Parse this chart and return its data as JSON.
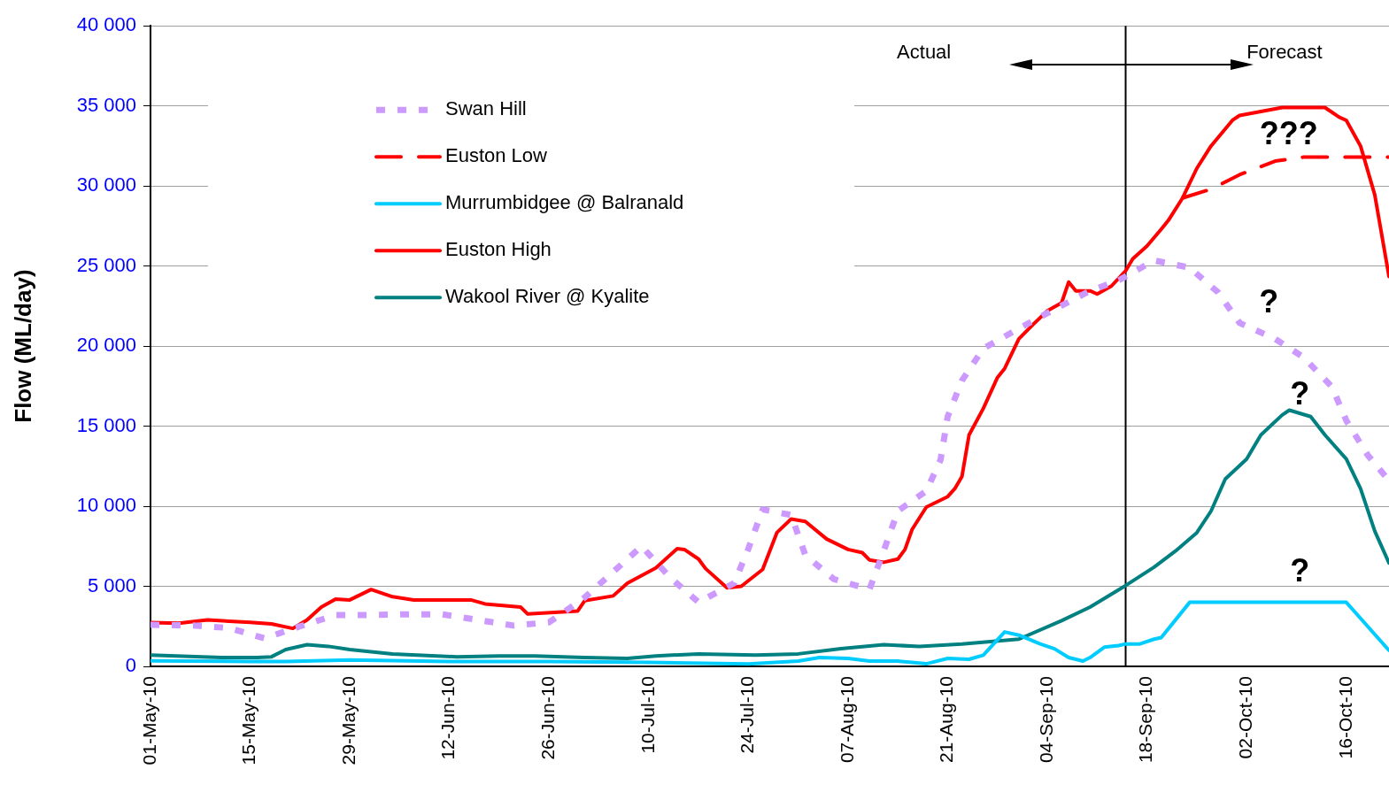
{
  "chart_data": {
    "type": "line",
    "ylabel": "Flow (ML/day)",
    "xlim": [
      "--05-01",
      "--10-22"
    ],
    "xticks": [
      {
        "value": "--05-01",
        "label": "01-May-10"
      },
      {
        "value": "--05-15",
        "label": "15-May-10"
      },
      {
        "value": "--05-29",
        "label": "29-May-10"
      },
      {
        "value": "--06-12",
        "label": "12-Jun-10"
      },
      {
        "value": "--06-26",
        "label": "26-Jun-10"
      },
      {
        "value": "--07-10",
        "label": "10-Jul-10"
      },
      {
        "value": "--07-24",
        "label": "24-Jul-10"
      },
      {
        "value": "--08-07",
        "label": "07-Aug-10"
      },
      {
        "value": "--08-21",
        "label": "21-Aug-10"
      },
      {
        "value": "--09-04",
        "label": "04-Sep-10"
      },
      {
        "value": "--09-18",
        "label": "18-Sep-10"
      },
      {
        "value": "--10-02",
        "label": "02-Oct-10"
      },
      {
        "value": "--10-16",
        "label": "16-Oct-10"
      }
    ],
    "ylim": [
      0,
      40000
    ],
    "yticks": [
      {
        "value": 0,
        "label": "0"
      },
      {
        "value": 5000,
        "label": "5 000"
      },
      {
        "value": 10000,
        "label": "10 000"
      },
      {
        "value": 15000,
        "label": "15 000"
      },
      {
        "value": 20000,
        "label": "20 000"
      },
      {
        "value": 25000,
        "label": "25 000"
      },
      {
        "value": 30000,
        "label": "30 000"
      },
      {
        "value": 35000,
        "label": "35 000"
      },
      {
        "value": 40000,
        "label": "40 000"
      }
    ],
    "grid": "y",
    "legend": "top left",
    "ref_lines": [
      {
        "axis": "x",
        "value": "--09-15",
        "color": "#000000",
        "line_style": "solid"
      }
    ],
    "annotations": [
      "Actual",
      "Forecast",
      "???",
      "?",
      "?",
      "?"
    ],
    "series": [
      {
        "name": "Swan Hill",
        "color": "#cc99ff",
        "line_style": "dotted",
        "x": [
          "--05-01",
          "--05-07",
          "--05-12",
          "--05-17",
          "--05-22",
          "--05-27",
          "--05-31",
          "--06-06",
          "--06-11",
          "--06-16",
          "--06-21",
          "--06-26",
          "--07-01",
          "--07-05",
          "--07-09",
          "--07-13",
          "--07-17",
          "--07-22",
          "--07-24",
          "--07-26",
          "--07-30",
          "--08-01",
          "--08-05",
          "--08-10",
          "--08-12",
          "--08-14",
          "--08-18",
          "--08-20",
          "--08-21",
          "--08-23",
          "--08-26",
          "--08-31",
          "--09-05",
          "--09-10",
          "--09-14",
          "--09-19",
          "--09-24",
          "--09-28",
          "--10-01",
          "--10-06",
          "--10-10",
          "--10-14",
          "--10-16",
          "--10-19",
          "--10-22"
        ],
        "values": [
          2600,
          2550,
          2400,
          1750,
          2500,
          3200,
          3200,
          3250,
          3250,
          2900,
          2550,
          2750,
          4300,
          5900,
          7500,
          5550,
          4000,
          5200,
          7350,
          9800,
          9450,
          6950,
          5450,
          4800,
          7200,
          9700,
          10950,
          12900,
          15600,
          17850,
          19850,
          21100,
          22300,
          23450,
          24100,
          25350,
          24900,
          23350,
          21450,
          20450,
          19300,
          17450,
          15350,
          13200,
          11600
        ]
      },
      {
        "name": "Euston Low",
        "color": "#ff0000",
        "line_style": "dashed",
        "x": [
          "--09-23",
          "--09-27",
          "--10-01",
          "--10-06",
          "--10-10",
          "--10-22"
        ],
        "values": [
          29250,
          29800,
          30700,
          31550,
          31800,
          31800
        ]
      },
      {
        "name": "Murrumbidgee @ Balranald",
        "color": "#00ccff",
        "line_style": "solid",
        "x": [
          "--05-01",
          "--05-15",
          "--05-20",
          "--05-29",
          "--06-12",
          "--06-26",
          "--07-10",
          "--07-24",
          "--07-31",
          "--08-03",
          "--08-07",
          "--08-10",
          "--08-14",
          "--08-18",
          "--08-21",
          "--08-24",
          "--08-26",
          "--08-29",
          "--08-31",
          "--09-03",
          "--09-05",
          "--09-07",
          "--09-09",
          "--09-10",
          "--09-12",
          "--09-14",
          "--09-15",
          "--09-17",
          "--09-19",
          "--09-20",
          "--09-24",
          "--10-16",
          "--10-22"
        ],
        "values": [
          350,
          300,
          300,
          400,
          300,
          300,
          250,
          150,
          330,
          550,
          500,
          330,
          330,
          160,
          500,
          440,
          700,
          2150,
          1950,
          1400,
          1100,
          550,
          330,
          550,
          1200,
          1300,
          1400,
          1400,
          1700,
          1800,
          4000,
          4000,
          1000
        ]
      },
      {
        "name": "Euston High",
        "color": "#ff0000",
        "line_style": "solid",
        "x": [
          "--05-01",
          "--05-05",
          "--05-09",
          "--05-15",
          "--05-18",
          "--05-21",
          "--05-23",
          "--05-25",
          "--05-27",
          "--05-29",
          "--06-01",
          "--06-04",
          "--06-07",
          "--06-15",
          "--06-17",
          "--06-22",
          "--06-23",
          "--06-30",
          "--07-01",
          "--07-05",
          "--07-07",
          "--07-11",
          "--07-14",
          "--07-15",
          "--07-17",
          "--07-18",
          "--07-21",
          "--07-23",
          "--07-26",
          "--07-28",
          "--07-30",
          "--08-01",
          "--08-04",
          "--08-07",
          "--08-09",
          "--08-10",
          "--08-12",
          "--08-14",
          "--08-15",
          "--08-16",
          "--08-18",
          "--08-21",
          "--08-22",
          "--08-23",
          "--08-24",
          "--08-26",
          "--08-28",
          "--08-29",
          "--08-31",
          "--09-02",
          "--09-04",
          "--09-06",
          "--09-07",
          "--09-08",
          "--09-10",
          "--09-11",
          "--09-13",
          "--09-15",
          "--09-16",
          "--09-18",
          "--09-20",
          "--09-21",
          "--09-23",
          "--09-25",
          "--09-27",
          "--09-30",
          "--10-01",
          "--10-07",
          "--10-13",
          "--10-15",
          "--10-16",
          "--10-18",
          "--10-20",
          "--10-22"
        ],
        "values": [
          2730,
          2700,
          2900,
          2750,
          2650,
          2370,
          2900,
          3700,
          4200,
          4150,
          4800,
          4350,
          4150,
          4150,
          3900,
          3700,
          3270,
          3450,
          4100,
          4400,
          5200,
          6150,
          7350,
          7300,
          6700,
          6100,
          4900,
          5000,
          6050,
          8350,
          9200,
          9050,
          7950,
          7300,
          7100,
          6650,
          6500,
          6700,
          7300,
          8550,
          9950,
          10600,
          11100,
          11850,
          14450,
          16100,
          18050,
          18600,
          20450,
          21350,
          22200,
          22700,
          24000,
          23450,
          23450,
          23250,
          23750,
          24700,
          25450,
          26250,
          27300,
          27850,
          29250,
          31100,
          32500,
          34100,
          34400,
          34900,
          34900,
          34300,
          34100,
          32500,
          29450,
          24350
        ]
      },
      {
        "name": "Wakool River @ Kyalite",
        "color": "#008080",
        "line_style": "solid",
        "x": [
          "--05-01",
          "--05-11",
          "--05-16",
          "--05-18",
          "--05-20",
          "--05-23",
          "--05-26",
          "--05-29",
          "--06-04",
          "--06-13",
          "--06-19",
          "--06-24",
          "--07-01",
          "--07-07",
          "--07-11",
          "--07-17",
          "--07-25",
          "--07-31",
          "--08-06",
          "--08-12",
          "--08-17",
          "--08-23",
          "--08-31",
          "--09-06",
          "--09-10",
          "--09-15",
          "--09-19",
          "--09-22",
          "--09-25",
          "--09-27",
          "--09-29",
          "--10-02",
          "--10-04",
          "--10-07",
          "--10-08",
          "--10-11",
          "--10-13",
          "--10-16",
          "--10-18",
          "--10-20",
          "--10-22"
        ],
        "values": [
          700,
          550,
          550,
          600,
          1050,
          1350,
          1250,
          1050,
          780,
          600,
          650,
          650,
          550,
          500,
          650,
          780,
          700,
          780,
          1100,
          1350,
          1250,
          1400,
          1700,
          2850,
          3700,
          5050,
          6200,
          7200,
          8350,
          9700,
          11700,
          12950,
          14450,
          15700,
          16000,
          15600,
          14450,
          12950,
          11100,
          8450,
          6450
        ]
      }
    ]
  }
}
